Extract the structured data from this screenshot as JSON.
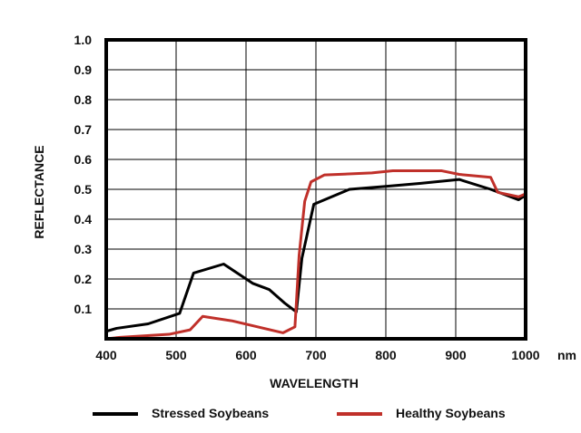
{
  "chart_data": {
    "type": "line",
    "title": "",
    "xlabel": "WAVELENGTH",
    "ylabel": "REFLECTANCE",
    "x_unit": "nm",
    "xlim": [
      400,
      1000
    ],
    "ylim": [
      0,
      1.0
    ],
    "x_ticks": [
      400,
      500,
      600,
      700,
      800,
      900,
      1000
    ],
    "y_ticks": [
      0.1,
      0.2,
      0.3,
      0.4,
      0.5,
      0.6,
      0.7,
      0.8,
      0.9,
      1.0
    ],
    "x_tick_labels": [
      "400",
      "500",
      "600",
      "700",
      "800",
      "900",
      "1000"
    ],
    "y_tick_labels": [
      "0.1",
      "0.2",
      "0.3",
      "0.4",
      "0.5",
      "0.6",
      "0.7",
      "0.8",
      "0.9",
      "1.0"
    ],
    "grid": true,
    "legend_position": "bottom",
    "series": [
      {
        "name": "Stressed Soybeans",
        "color": "#000000",
        "x": [
          400,
          415,
          460,
          505,
          525,
          568,
          610,
          633,
          655,
          672,
          680,
          697,
          748,
          800,
          850,
          905,
          950,
          990,
          1000
        ],
        "y": [
          0.025,
          0.035,
          0.05,
          0.085,
          0.22,
          0.25,
          0.185,
          0.165,
          0.12,
          0.09,
          0.27,
          0.45,
          0.5,
          0.51,
          0.52,
          0.533,
          0.5,
          0.465,
          0.48
        ]
      },
      {
        "name": "Healthy Soybeans",
        "color": "#c0302a",
        "x": [
          400,
          420,
          490,
          520,
          538,
          580,
          653,
          670,
          676,
          684,
          693,
          712,
          780,
          810,
          880,
          905,
          950,
          960,
          990,
          1000
        ],
        "y": [
          0.0,
          0.005,
          0.015,
          0.03,
          0.075,
          0.06,
          0.02,
          0.04,
          0.28,
          0.46,
          0.525,
          0.548,
          0.555,
          0.562,
          0.562,
          0.55,
          0.54,
          0.49,
          0.475,
          0.485
        ]
      }
    ]
  }
}
